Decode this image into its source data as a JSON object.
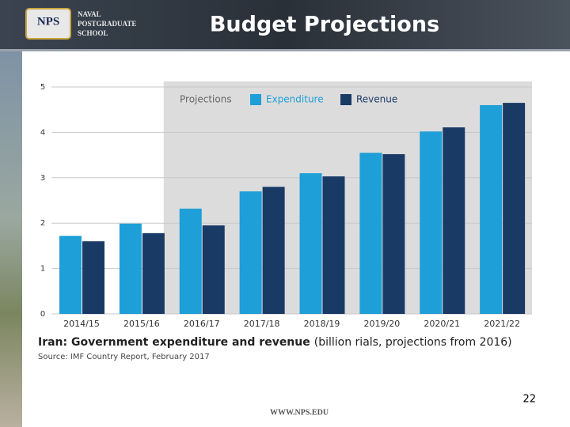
{
  "header": {
    "school": [
      "NAVAL",
      "POSTGRADUATE",
      "SCHOOL"
    ],
    "logo_text": "NPS",
    "title": "Budget Projections"
  },
  "chart_data": {
    "type": "bar",
    "title": "Iran: Government expenditure and revenue",
    "subtitle": "(billion rials, projections from 2016)",
    "source": "Source: IMF Country Report, February 2017",
    "legend_title": "Projections",
    "shade_start": "2016/17",
    "categories": [
      "2014/15",
      "2015/16",
      "2016/17",
      "2017/18",
      "2018/19",
      "2019/20",
      "2020/21",
      "2021/22"
    ],
    "series": [
      {
        "name": "Expenditure",
        "color": "#1e9fd8",
        "values": [
          1.72,
          1.99,
          2.32,
          2.7,
          3.1,
          3.55,
          4.02,
          4.6
        ]
      },
      {
        "name": "Revenue",
        "color": "#1a3a66",
        "values": [
          1.6,
          1.78,
          1.95,
          2.8,
          3.03,
          3.52,
          4.11,
          4.65
        ]
      }
    ],
    "ylim": [
      0,
      5
    ],
    "yticks": [
      0,
      1,
      2,
      3,
      4,
      5
    ],
    "grid": true
  },
  "footer": {
    "url": "WWW.NPS.EDU",
    "page": "22"
  }
}
